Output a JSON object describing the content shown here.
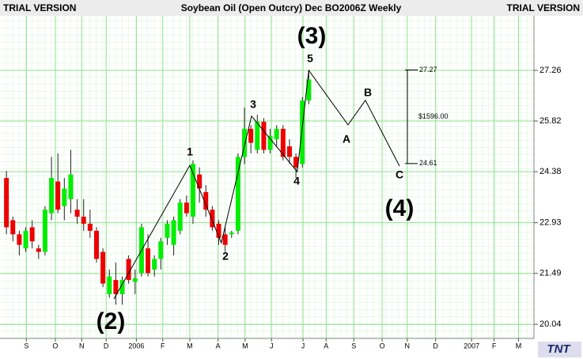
{
  "chart_data": {
    "type": "candlestick",
    "title": "Soybean Oil (Open Outcry) Dec BO2006Z Weekly",
    "watermark": "TRIAL VERSION",
    "logo": "TNT",
    "up_color": "#00ee00",
    "down_color": "#ee0000",
    "grid": true,
    "xlim": [
      0,
      83
    ],
    "ylim": [
      19.64,
      28.81
    ],
    "yticks": [
      20.04,
      21.49,
      22.93,
      24.38,
      25.82,
      27.26
    ],
    "xticks": [
      {
        "value": 4.1,
        "label": "S"
      },
      {
        "value": 8.6,
        "label": "O"
      },
      {
        "value": 12.7,
        "label": "N"
      },
      {
        "value": 16.5,
        "label": "D"
      },
      {
        "value": 21.2,
        "label": "2006"
      },
      {
        "value": 25.3,
        "label": "F"
      },
      {
        "value": 29.5,
        "label": "M"
      },
      {
        "value": 33.9,
        "label": "A"
      },
      {
        "value": 38.1,
        "label": "M"
      },
      {
        "value": 42.2,
        "label": "J"
      },
      {
        "value": 47.1,
        "label": "J"
      },
      {
        "value": 50.7,
        "label": "A"
      },
      {
        "value": 55.0,
        "label": "S"
      },
      {
        "value": 59.4,
        "label": "O"
      },
      {
        "value": 63.3,
        "label": "N"
      },
      {
        "value": 67.7,
        "label": "D"
      },
      {
        "value": 73.3,
        "label": "2007"
      },
      {
        "value": 76.8,
        "label": "F"
      },
      {
        "value": 80.6,
        "label": "M"
      }
    ],
    "x": [
      1,
      2,
      3,
      4,
      5,
      6,
      7,
      8,
      9,
      10,
      11,
      12,
      13,
      14,
      15,
      16,
      17,
      18,
      19,
      20,
      21,
      22,
      23,
      24,
      25,
      26,
      27,
      28,
      29,
      30,
      31,
      32,
      33,
      34,
      35,
      36,
      37,
      38,
      39,
      40,
      41,
      42,
      43,
      44,
      45,
      46,
      47,
      48
    ],
    "open": [
      24.2,
      23.0,
      22.6,
      22.2,
      22.8,
      22.2,
      22.1,
      23.2,
      24.1,
      23.4,
      23.6,
      23.3,
      23.1,
      22.9,
      22.7,
      22.1,
      20.9,
      21.3,
      20.9,
      21.9,
      21.25,
      21.5,
      22.2,
      21.6,
      21.9,
      22.5,
      22.3,
      22.7,
      23.5,
      23.1,
      24.3,
      23.8,
      23.3,
      22.9,
      22.6,
      22.6,
      22.7,
      24.8,
      25.6,
      25.0,
      25.8,
      25.0,
      25.3,
      25.6,
      25.1,
      24.8,
      24.6,
      26.4
    ],
    "high": [
      24.4,
      23.1,
      22.7,
      22.8,
      23.0,
      22.3,
      23.4,
      24.8,
      24.9,
      24.2,
      25.0,
      23.6,
      23.6,
      23.3,
      22.8,
      22.2,
      21.6,
      21.8,
      21.4,
      22.0,
      21.6,
      22.9,
      22.6,
      22.0,
      22.5,
      23.0,
      23.1,
      23.6,
      23.7,
      24.7,
      24.5,
      24.0,
      23.4,
      23.0,
      22.8,
      22.7,
      24.9,
      26.2,
      25.7,
      26.0,
      25.9,
      25.6,
      25.7,
      25.7,
      25.3,
      24.9,
      26.5,
      27.27
    ],
    "low": [
      22.6,
      22.4,
      22.0,
      22.1,
      22.2,
      21.9,
      22.0,
      23.0,
      23.2,
      23.0,
      23.2,
      22.9,
      22.7,
      22.5,
      21.8,
      21.1,
      20.8,
      20.6,
      20.6,
      21.2,
      20.9,
      21.4,
      21.4,
      21.4,
      21.6,
      22.3,
      22.0,
      22.6,
      23.1,
      22.9,
      23.5,
      23.1,
      22.7,
      22.3,
      22.1,
      22.5,
      22.6,
      24.6,
      24.9,
      24.9,
      24.9,
      24.9,
      25.1,
      24.7,
      24.6,
      24.2,
      24.5,
      26.3
    ],
    "close": [
      22.8,
      22.6,
      22.3,
      22.7,
      22.4,
      22.1,
      23.3,
      24.2,
      23.3,
      23.9,
      24.3,
      23.1,
      22.9,
      22.7,
      21.9,
      21.2,
      21.4,
      20.9,
      21.3,
      21.3,
      21.35,
      22.8,
      21.5,
      21.9,
      22.4,
      22.9,
      23.0,
      23.5,
      23.2,
      24.6,
      23.9,
      23.3,
      22.8,
      22.5,
      22.3,
      22.65,
      24.8,
      25.6,
      25.2,
      25.8,
      25.0,
      25.4,
      25.6,
      24.8,
      24.8,
      24.5,
      26.4,
      27.0
    ],
    "wave": {
      "x": [
        17.7,
        29.5,
        34.4,
        39.1,
        46.2,
        48.0,
        54.1,
        56.8,
        62.1
      ],
      "y": [
        20.76,
        24.56,
        22.36,
        25.96,
        24.38,
        27.26,
        25.71,
        26.41,
        24.54
      ]
    },
    "annotations": [
      "(2)",
      "1",
      "2",
      "3",
      "(3)",
      "5",
      "4",
      "A",
      "B",
      "C",
      "(4)"
    ],
    "measure": {
      "high": 27.27,
      "low": 24.61,
      "label": "$1596.00"
    }
  }
}
